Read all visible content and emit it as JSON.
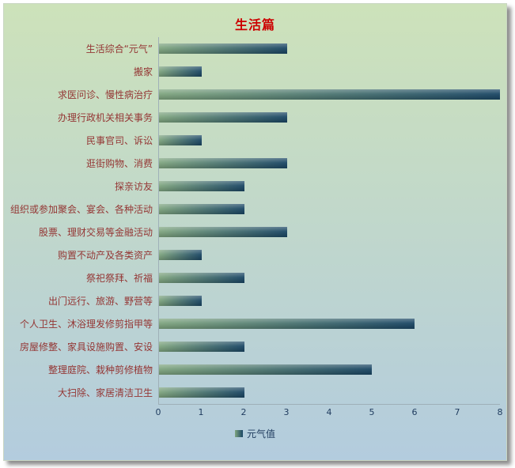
{
  "panel": {
    "title": "生活篇"
  },
  "legend": {
    "label": "元气值"
  },
  "chart_data": {
    "type": "bar",
    "orientation": "horizontal",
    "title": "生活篇",
    "categories": [
      "生活综合“元气”",
      "搬家",
      "求医问诊、慢性病治疗",
      "办理行政机关相关事务",
      "民事官司、诉讼",
      "逛街购物、消费",
      "探亲访友",
      "组织或参加聚会、宴会、各种活动",
      "股票、理财交易等金融活动",
      "购置不动产及各类资产",
      "祭祀祭拜、祈福",
      "出门远行、旅游、野营等",
      "个人卫生、沐浴理发修剪指甲等",
      "房屋修整、家具设施购置、安设",
      "整理庭院、栽种剪修植物",
      "大扫除、家居清洁卫生"
    ],
    "values": [
      3,
      1,
      8,
      3,
      1,
      3,
      2,
      2,
      3,
      1,
      2,
      1,
      6,
      2,
      5,
      2
    ],
    "xlabel": "",
    "ylabel": "",
    "xlim": [
      0,
      8
    ],
    "xticks": [
      0,
      1,
      2,
      3,
      4,
      5,
      6,
      7,
      8
    ],
    "grid": false,
    "legend_entries": [
      "元气值"
    ],
    "legend_position": "bottom",
    "colors": {
      "bg_top": "#cde2ba",
      "bg_bottom": "#b3ccde",
      "bar_start": "#7fa57f",
      "bar_end": "#1a4664",
      "title_color": "#cc0000",
      "cat_color": "#943634",
      "tick_color": "#1f3b5e",
      "axis_color": "#9fb0b8"
    }
  }
}
